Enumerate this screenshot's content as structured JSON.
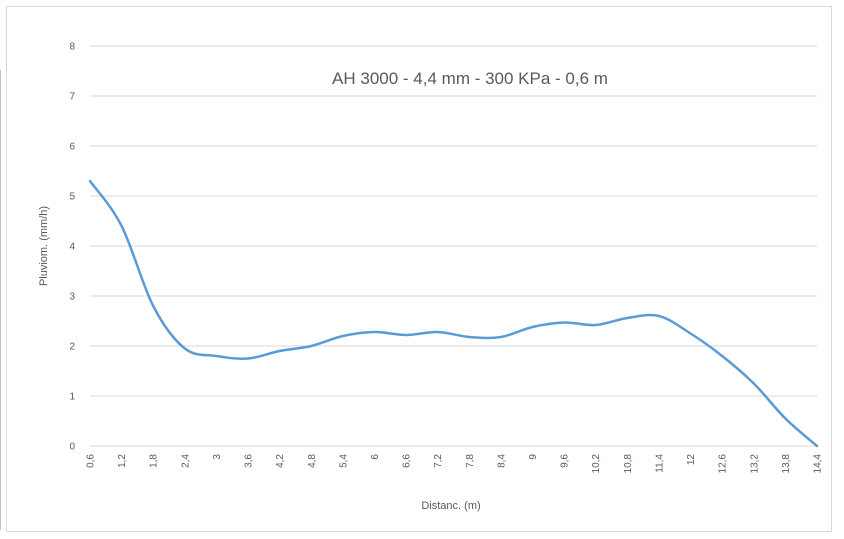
{
  "chart_data": {
    "type": "line",
    "title": "AH 3000 - 4,4 mm - 300 KPa - 0,6 m",
    "xlabel": "Distanc. (m)",
    "ylabel": "Pluviom. (mm/h)",
    "ylim": [
      0,
      8
    ],
    "yticks": [
      "0",
      "1",
      "2",
      "3",
      "4",
      "5",
      "6",
      "7",
      "8"
    ],
    "categories": [
      "0,6",
      "1,2",
      "1,8",
      "2,4",
      "3",
      "3,6",
      "4,2",
      "4,8",
      "5,4",
      "6",
      "6,6",
      "7,2",
      "7,8",
      "8,4",
      "9",
      "9,6",
      "10,2",
      "10,8",
      "11,4",
      "12",
      "12,6",
      "13,2",
      "13,8",
      "14,4"
    ],
    "series": [
      {
        "values": [
          5.3,
          4.4,
          2.8,
          1.95,
          1.8,
          1.75,
          1.9,
          2.0,
          2.2,
          2.28,
          2.22,
          2.28,
          2.18,
          2.18,
          2.38,
          2.47,
          2.42,
          2.56,
          2.6,
          2.25,
          1.8,
          1.25,
          0.55,
          0.0
        ],
        "color": "#5b9bd5"
      }
    ],
    "grid": true,
    "legend": "none"
  }
}
